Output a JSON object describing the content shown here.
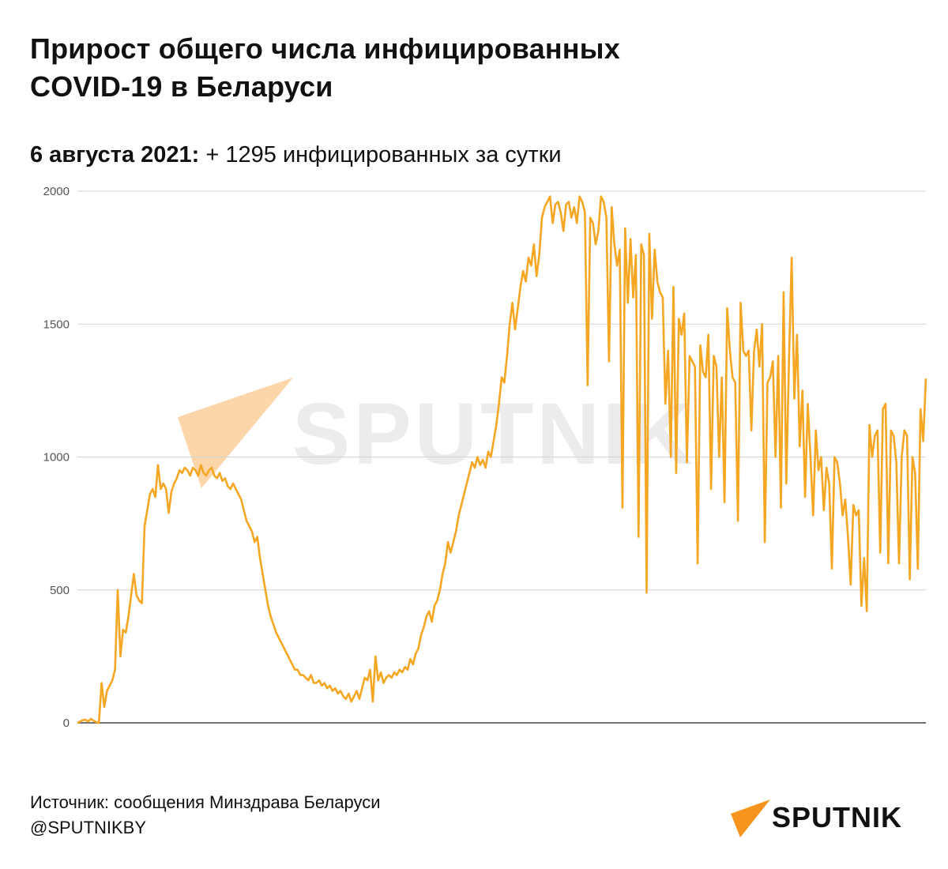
{
  "header": {
    "title_line1": "Прирост общего числа инфицированных",
    "title_line2": "COVID-19 в Беларуси",
    "subtitle_date": "6 августа 2021:",
    "subtitle_text": " + 1295 инфицированных за сутки"
  },
  "footer": {
    "source": "Источник: сообщения Минздрава Беларуси",
    "handle": "@SPUTNIKBY"
  },
  "brand": {
    "name": "SPUTNIK",
    "accent_color": "#f5a623",
    "logo_color": "#f7941d"
  },
  "chart_data": {
    "type": "line",
    "title": "Прирост общего числа инфицированных COVID-19 в Беларуси",
    "xlabel": "",
    "ylabel": "",
    "ylim": [
      0,
      2000
    ],
    "yticks": [
      0,
      500,
      1000,
      1500,
      2000
    ],
    "grid": true,
    "legend": "none",
    "line_color": "#f5a623",
    "series": [
      {
        "values": [
          0,
          5,
          10,
          12,
          5,
          15,
          8,
          3,
          0,
          150,
          60,
          120,
          140,
          160,
          200,
          500,
          250,
          350,
          340,
          400,
          480,
          560,
          480,
          460,
          450,
          740,
          800,
          860,
          880,
          850,
          970,
          880,
          900,
          880,
          790,
          870,
          900,
          920,
          950,
          940,
          960,
          950,
          930,
          960,
          950,
          930,
          970,
          940,
          930,
          950,
          960,
          930,
          920,
          940,
          910,
          920,
          890,
          880,
          900,
          880,
          860,
          840,
          800,
          760,
          740,
          720,
          680,
          700,
          620,
          560,
          500,
          440,
          400,
          370,
          340,
          320,
          300,
          280,
          260,
          240,
          220,
          200,
          200,
          180,
          180,
          170,
          160,
          180,
          150,
          150,
          160,
          140,
          150,
          130,
          140,
          120,
          130,
          110,
          120,
          100,
          90,
          110,
          80,
          100,
          120,
          90,
          130,
          170,
          160,
          200,
          80,
          250,
          160,
          190,
          150,
          170,
          180,
          170,
          190,
          180,
          200,
          190,
          210,
          200,
          240,
          220,
          260,
          280,
          330,
          360,
          400,
          420,
          380,
          440,
          460,
          500,
          560,
          600,
          680,
          640,
          680,
          720,
          780,
          820,
          860,
          900,
          940,
          980,
          960,
          1000,
          970,
          990,
          960,
          1020,
          1000,
          1060,
          1120,
          1200,
          1300,
          1280,
          1380,
          1500,
          1580,
          1480,
          1560,
          1640,
          1700,
          1660,
          1750,
          1720,
          1800,
          1680,
          1760,
          1900,
          1940,
          1960,
          1980,
          1880,
          1950,
          1960,
          1920,
          1850,
          1950,
          1960,
          1900,
          1940,
          1880,
          1980,
          1960,
          1920,
          1270,
          1900,
          1880,
          1800,
          1850,
          1980,
          1960,
          1900,
          1360,
          1940,
          1800,
          1720,
          1780,
          810,
          1860,
          1580,
          1820,
          1600,
          1760,
          700,
          1800,
          1760,
          490,
          1840,
          1520,
          1780,
          1660,
          1620,
          1600,
          1200,
          1400,
          1000,
          1640,
          940,
          1520,
          1460,
          1540,
          980,
          1380,
          1360,
          1340,
          600,
          1420,
          1320,
          1300,
          1460,
          880,
          1380,
          1340,
          1000,
          1300,
          830,
          1560,
          1400,
          1300,
          1280,
          760,
          1580,
          1400,
          1380,
          1400,
          1100,
          1400,
          1480,
          1340,
          1500,
          680,
          1280,
          1300,
          1360,
          1000,
          1380,
          810,
          1620,
          900,
          1360,
          1750,
          1220,
          1460,
          1040,
          1250,
          850,
          1200,
          1000,
          780,
          1100,
          950,
          1000,
          800,
          960,
          900,
          580,
          1000,
          980,
          900,
          780,
          840,
          700,
          520,
          820,
          780,
          800,
          440,
          620,
          420,
          1120,
          1000,
          1080,
          1100,
          640,
          1180,
          1200,
          600,
          1100,
          1080,
          980,
          600,
          1000,
          1100,
          1080,
          540,
          1000,
          940,
          580,
          1180,
          1060,
          1295
        ]
      }
    ]
  }
}
